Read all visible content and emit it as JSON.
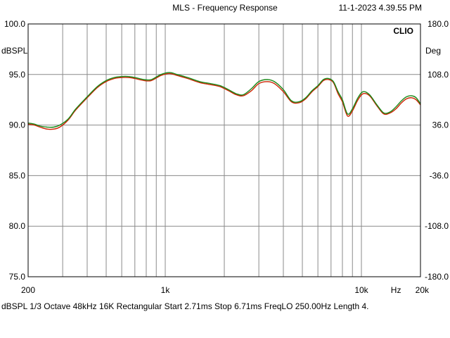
{
  "header": {
    "title": "MLS - Frequency Response",
    "timestamp": "11-1-2023 4.39.55 PM",
    "brand": "CLIO"
  },
  "footer": {
    "text": "dBSPL   1/3 Octave   48kHz   16K   Rectangular   Start 2.71ms     Stop 6.71ms     FreqLO 250.00Hz   Length 4."
  },
  "colors": {
    "series_red": "#cc2200",
    "series_green": "#1a8a1a",
    "grid": "#8a8a8a",
    "background": "#ffffff"
  },
  "chart_data": {
    "type": "line",
    "title": "MLS - Frequency Response",
    "xscale": "log",
    "xlim": [
      200,
      20000
    ],
    "ylim": [
      75,
      100
    ],
    "ylim_right": [
      -180,
      180
    ],
    "ylabel": "dBSPL",
    "ylabel_right": "Deg",
    "xlabel": "Hz",
    "x_tick_labels": [
      {
        "value": 200,
        "label": "200"
      },
      {
        "value": 1000,
        "label": "1k"
      },
      {
        "value": 10000,
        "label": "10k"
      },
      {
        "value": 15000,
        "label": "Hz"
      },
      {
        "value": 20000,
        "label": "20k"
      }
    ],
    "y_tick_labels": [
      "100.0",
      "95.0",
      "90.0",
      "85.0",
      "80.0",
      "75.0"
    ],
    "y_tick_values": [
      100,
      95,
      90,
      85,
      80,
      75
    ],
    "y_right_tick_labels": [
      "180.0",
      "108.0",
      "36.0",
      "-36.0",
      "-108.0",
      "-180.0"
    ],
    "x_grid": [
      300,
      400,
      500,
      600,
      700,
      800,
      900,
      1000,
      2000,
      3000,
      4000,
      5000,
      6000,
      7000,
      8000,
      9000,
      10000
    ],
    "grid": true,
    "series": [
      {
        "color": "#cc2200",
        "x": [
          200,
          215,
          230,
          250,
          270,
          290,
          320,
          350,
          400,
          450,
          500,
          550,
          600,
          650,
          700,
          780,
          850,
          950,
          1050,
          1150,
          1300,
          1500,
          1700,
          1900,
          2100,
          2300,
          2500,
          2750,
          3000,
          3300,
          3600,
          4000,
          4400,
          4800,
          5200,
          5600,
          6000,
          6400,
          6800,
          7200,
          7600,
          8000,
          8500,
          9000,
          9600,
          10200,
          11000,
          12000,
          13000,
          14000,
          15000,
          16000,
          17000,
          18000,
          19000,
          20000
        ],
        "y": [
          90.1,
          90.0,
          89.8,
          89.6,
          89.6,
          89.8,
          90.5,
          91.5,
          92.7,
          93.7,
          94.3,
          94.6,
          94.7,
          94.7,
          94.6,
          94.4,
          94.4,
          94.9,
          95.1,
          94.9,
          94.6,
          94.2,
          94.0,
          93.8,
          93.4,
          93.0,
          92.9,
          93.4,
          94.1,
          94.3,
          94.1,
          93.3,
          92.3,
          92.2,
          92.6,
          93.3,
          93.8,
          94.4,
          94.5,
          94.2,
          93.1,
          92.3,
          90.9,
          91.4,
          92.5,
          93.1,
          92.9,
          91.9,
          91.1,
          91.2,
          91.6,
          92.2,
          92.6,
          92.7,
          92.5,
          92.0
        ]
      },
      {
        "color": "#1a8a1a",
        "x": [
          200,
          215,
          230,
          250,
          270,
          290,
          320,
          350,
          400,
          450,
          500,
          550,
          600,
          650,
          700,
          780,
          850,
          950,
          1050,
          1150,
          1300,
          1500,
          1700,
          1900,
          2100,
          2300,
          2500,
          2750,
          3000,
          3300,
          3600,
          4000,
          4400,
          4800,
          5200,
          5600,
          6000,
          6400,
          6800,
          7200,
          7600,
          8000,
          8500,
          9000,
          9600,
          10200,
          11000,
          12000,
          13000,
          14000,
          15000,
          16000,
          17000,
          18000,
          19000,
          20000
        ],
        "y": [
          90.2,
          90.1,
          89.9,
          89.8,
          89.8,
          90.0,
          90.6,
          91.6,
          92.8,
          93.8,
          94.4,
          94.7,
          94.8,
          94.8,
          94.7,
          94.5,
          94.5,
          95.0,
          95.2,
          95.0,
          94.7,
          94.3,
          94.1,
          93.9,
          93.5,
          93.1,
          93.0,
          93.6,
          94.3,
          94.5,
          94.3,
          93.5,
          92.4,
          92.3,
          92.7,
          93.4,
          93.9,
          94.5,
          94.6,
          94.3,
          93.3,
          92.5,
          91.1,
          91.6,
          92.7,
          93.3,
          93.0,
          92.0,
          91.2,
          91.3,
          91.8,
          92.4,
          92.8,
          92.9,
          92.7,
          92.1
        ]
      }
    ]
  }
}
